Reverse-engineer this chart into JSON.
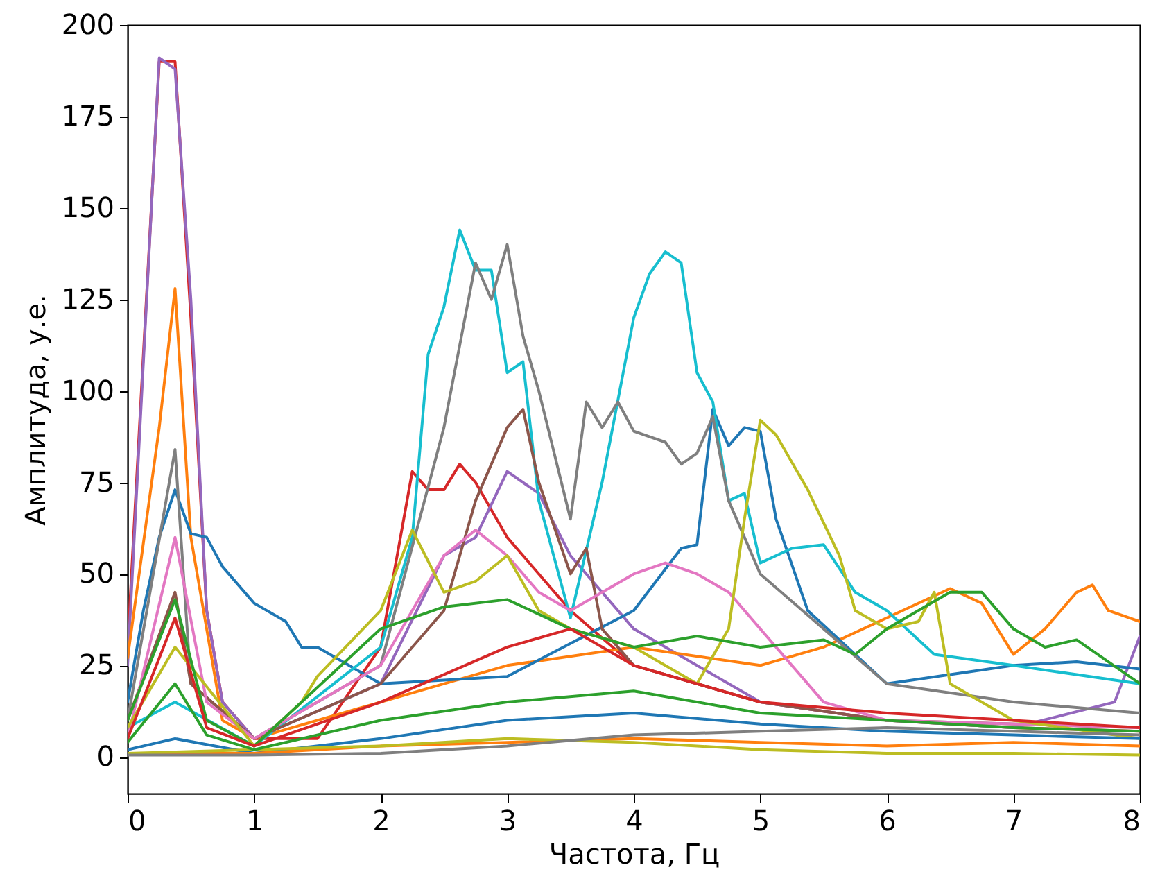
{
  "chart_data": {
    "type": "line",
    "xlabel": "Частота, Гц",
    "ylabel": "Амплитуда, у.е.",
    "xlim": [
      0,
      8
    ],
    "ylim": [
      -10,
      200
    ],
    "xticks": [
      0,
      1,
      2,
      3,
      4,
      5,
      6,
      7,
      8
    ],
    "yticks": [
      0,
      25,
      50,
      75,
      100,
      125,
      150,
      175,
      200
    ],
    "line_style": "solid",
    "series": [
      {
        "color": "#d62728",
        "x": [
          0,
          0.25,
          0.375,
          0.5,
          0.625,
          0.75,
          1,
          1.5,
          2,
          2.25,
          2.375,
          2.5,
          2.625,
          2.75,
          3,
          3.5,
          4,
          5,
          6,
          7,
          8
        ],
        "values": [
          30,
          190,
          190,
          120,
          40,
          15,
          5,
          5,
          30,
          78,
          73,
          73,
          80,
          75,
          60,
          40,
          25,
          15,
          10,
          8,
          7
        ]
      },
      {
        "color": "#9467bd",
        "x": [
          0,
          0.25,
          0.375,
          0.5,
          0.625,
          0.75,
          1,
          2,
          2.5,
          2.75,
          3,
          3.25,
          3.5,
          4,
          5,
          6,
          7,
          7.8,
          8
        ],
        "values": [
          25,
          191,
          188,
          125,
          40,
          15,
          5,
          20,
          55,
          60,
          78,
          72,
          55,
          35,
          15,
          10,
          8,
          15,
          33
        ]
      },
      {
        "color": "#ff7f0e",
        "x": [
          0,
          0.25,
          0.375,
          0.5,
          0.75,
          1,
          2,
          3,
          4,
          5,
          5.5,
          6,
          6.5,
          6.75,
          7,
          7.25,
          7.5,
          7.625,
          7.75,
          8
        ],
        "values": [
          27,
          90,
          128,
          60,
          10,
          5,
          15,
          25,
          30,
          25,
          30,
          38,
          46,
          42,
          28,
          35,
          45,
          47,
          40,
          37
        ]
      },
      {
        "color": "#1f77b4",
        "x": [
          0,
          0.125,
          0.25,
          0.375,
          0.5,
          0.625,
          0.75,
          1,
          1.25,
          1.375,
          1.5,
          1.75,
          2,
          3,
          4,
          4.375,
          4.5,
          4.625,
          4.75,
          4.875,
          5,
          5.125,
          5.375,
          6,
          7,
          7.5,
          8
        ],
        "values": [
          15,
          40,
          60,
          73,
          61,
          60,
          52,
          42,
          37,
          30,
          30,
          25,
          20,
          22,
          40,
          57,
          58,
          95,
          85,
          90,
          89,
          65,
          40,
          20,
          25,
          26,
          24
        ]
      },
      {
        "color": "#17becf",
        "x": [
          0,
          0.375,
          1,
          2,
          2.25,
          2.375,
          2.5,
          2.625,
          2.75,
          2.875,
          3,
          3.125,
          3.25,
          3.5,
          3.75,
          4,
          4.125,
          4.25,
          4.375,
          4.5,
          4.625,
          4.75,
          4.875,
          5,
          5.25,
          5.5,
          5.75,
          6,
          6.375,
          7,
          8
        ],
        "values": [
          8,
          15,
          3,
          30,
          60,
          110,
          123,
          144,
          133,
          133,
          105,
          108,
          70,
          38,
          75,
          120,
          132,
          138,
          135,
          105,
          97,
          70,
          72,
          53,
          57,
          58,
          45,
          40,
          28,
          25,
          20
        ]
      },
      {
        "color": "#7f7f7f",
        "x": [
          0,
          0.375,
          0.5,
          1,
          2,
          2.5,
          2.75,
          2.875,
          3,
          3.125,
          3.25,
          3.5,
          3.625,
          3.75,
          3.875,
          4,
          4.25,
          4.375,
          4.5,
          4.625,
          4.75,
          4.875,
          5,
          6,
          7,
          8
        ],
        "values": [
          10,
          84,
          20,
          5,
          25,
          90,
          135,
          125,
          140,
          115,
          100,
          65,
          97,
          90,
          97,
          89,
          86,
          80,
          83,
          93,
          70,
          60,
          50,
          20,
          15,
          12
        ]
      },
      {
        "color": "#8c564b",
        "x": [
          0,
          0.375,
          0.5,
          1,
          2,
          2.5,
          2.75,
          3,
          3.125,
          3.25,
          3.5,
          3.625,
          3.75,
          4,
          5,
          6,
          8
        ],
        "values": [
          10,
          45,
          20,
          5,
          20,
          40,
          70,
          90,
          95,
          75,
          50,
          57,
          35,
          25,
          15,
          10,
          8
        ]
      },
      {
        "color": "#e377c2",
        "x": [
          0,
          0.375,
          0.625,
          1,
          2,
          2.5,
          2.75,
          3,
          3.25,
          3.5,
          4,
          4.25,
          4.5,
          4.75,
          5,
          5.5,
          6,
          8
        ],
        "values": [
          5,
          60,
          15,
          5,
          25,
          55,
          62,
          55,
          45,
          40,
          50,
          53,
          50,
          45,
          35,
          15,
          10,
          8
        ]
      },
      {
        "color": "#bcbd22",
        "x": [
          0,
          0.375,
          1,
          1.375,
          1.5,
          2,
          2.25,
          2.5,
          2.75,
          3,
          3.25,
          3.5,
          4,
          4.5,
          4.75,
          4.875,
          5,
          5.125,
          5.375,
          5.625,
          5.75,
          6,
          6.25,
          6.375,
          6.5,
          7,
          8
        ],
        "values": [
          8,
          30,
          3,
          15,
          22,
          40,
          62,
          45,
          48,
          55,
          40,
          35,
          30,
          20,
          35,
          65,
          92,
          88,
          73,
          55,
          40,
          35,
          37,
          45,
          20,
          10,
          5
        ]
      },
      {
        "color": "#2ca02c",
        "x": [
          0,
          0.375,
          0.625,
          1,
          2,
          2.5,
          3,
          3.5,
          4,
          4.5,
          5,
          5.5,
          5.75,
          6,
          6.5,
          6.75,
          7,
          7.25,
          7.5,
          8
        ],
        "values": [
          10,
          43,
          10,
          3,
          35,
          41,
          43,
          35,
          30,
          33,
          30,
          32,
          28,
          35,
          45,
          45,
          35,
          30,
          32,
          20
        ]
      },
      {
        "color": "#1f77b4",
        "x": [
          0,
          0.375,
          1,
          2,
          3,
          4,
          5,
          6,
          7,
          8
        ],
        "values": [
          2,
          5,
          1,
          5,
          10,
          12,
          9,
          7,
          6,
          5
        ]
      },
      {
        "color": "#ff7f0e",
        "x": [
          0,
          1,
          2,
          3,
          4,
          5,
          6,
          7,
          8
        ],
        "values": [
          1,
          1,
          3,
          4,
          5,
          4,
          3,
          4,
          3
        ]
      },
      {
        "color": "#bcbd22",
        "x": [
          0,
          2,
          3,
          4,
          5,
          6,
          7,
          8
        ],
        "values": [
          1,
          3,
          5,
          4,
          2,
          1,
          1,
          0.5
        ]
      },
      {
        "color": "#2ca02c",
        "x": [
          0,
          0.375,
          0.625,
          1,
          2,
          3,
          4,
          5,
          6,
          7,
          8
        ],
        "values": [
          4,
          20,
          6,
          2,
          10,
          15,
          18,
          12,
          10,
          8,
          7
        ]
      },
      {
        "color": "#7f7f7f",
        "x": [
          0,
          1,
          2,
          3,
          4,
          5,
          6,
          7,
          8
        ],
        "values": [
          0.5,
          0.5,
          1,
          3,
          6,
          7,
          8,
          7,
          6
        ]
      },
      {
        "color": "#d62728",
        "x": [
          0,
          0.375,
          0.625,
          1,
          2,
          3,
          3.5,
          4,
          5,
          6,
          7,
          8
        ],
        "values": [
          5,
          38,
          8,
          3,
          15,
          30,
          35,
          25,
          15,
          12,
          10,
          8
        ]
      }
    ]
  }
}
